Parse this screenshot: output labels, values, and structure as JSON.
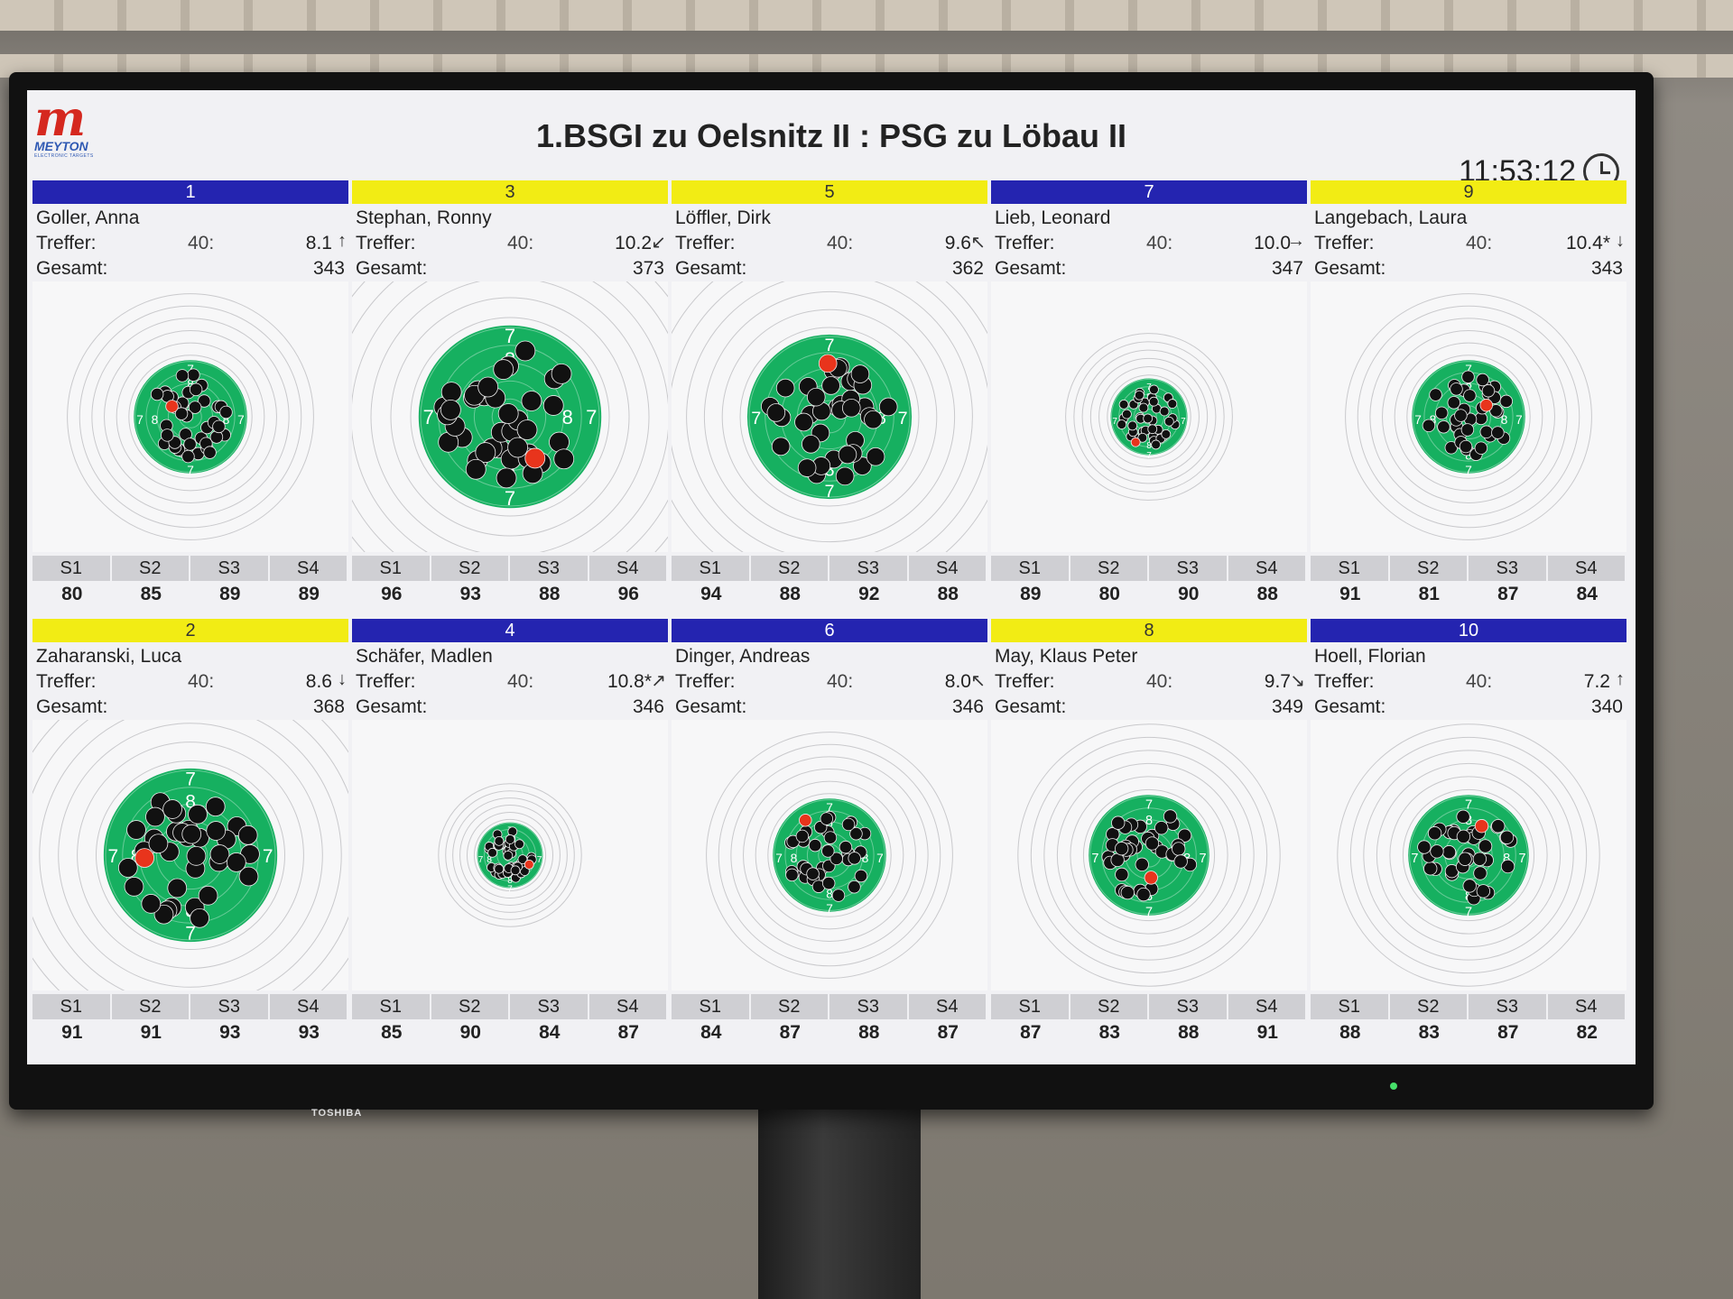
{
  "header": {
    "logo_mark": "m",
    "logo_text": "MEYTON",
    "logo_subtext": "ELECTRONIC TARGETS",
    "title": "1.BSGI zu Oelsnitz II : PSG zu Löbau II",
    "clock": "11:53:12"
  },
  "labels": {
    "treffer": "Treffer:",
    "gesamt": "Gesamt:",
    "score_label": "40:"
  },
  "series_labels": [
    "S1",
    "S2",
    "S3",
    "S4"
  ],
  "colors": {
    "target_green": "#16b060",
    "lane_blue": "#2424b0",
    "lane_yellow": "#f2ec14",
    "last_shot": "#e8341c",
    "marker_yellow": "#e8e81a",
    "marker_blue": "#2a3fd0"
  },
  "shooters": [
    {
      "lane": "1",
      "color": "blue",
      "name": "Goller, Anna",
      "last": "8.1",
      "arrow": "↑",
      "total": "343",
      "series": [
        "80",
        "85",
        "89",
        "89"
      ],
      "zoom": 0.62,
      "center": "8"
    },
    {
      "lane": "3",
      "color": "yellow",
      "name": "Stephan, Ronny",
      "last": "10.2",
      "arrow": "↙",
      "total": "373",
      "series": [
        "96",
        "93",
        "88",
        "96"
      ],
      "zoom": 1.0,
      "center": "8"
    },
    {
      "lane": "5",
      "color": "yellow",
      "name": "Löffler, Dirk",
      "last": "9.6",
      "arrow": "↖",
      "total": "362",
      "series": [
        "94",
        "88",
        "92",
        "88"
      ],
      "zoom": 0.9,
      "center": "8"
    },
    {
      "lane": "7",
      "color": "blue",
      "name": "Lieb, Leonard",
      "last": "10.0",
      "arrow": "→",
      "total": "347",
      "series": [
        "89",
        "80",
        "90",
        "88"
      ],
      "zoom": 0.42,
      "center": "8"
    },
    {
      "lane": "9",
      "color": "yellow",
      "name": "Langebach, Laura",
      "last": "10.4*",
      "arrow": "↓",
      "total": "343",
      "series": [
        "91",
        "81",
        "87",
        "84"
      ],
      "zoom": 0.62,
      "center": "8"
    },
    {
      "lane": "2",
      "color": "yellow",
      "name": "Zaharanski, Luca",
      "last": "8.6",
      "arrow": "↓",
      "total": "368",
      "series": [
        "91",
        "91",
        "93",
        "93"
      ],
      "zoom": 0.95,
      "center": "8"
    },
    {
      "lane": "4",
      "color": "blue",
      "name": "Schäfer, Madlen",
      "last": "10.8*",
      "arrow": "↗",
      "total": "346",
      "series": [
        "85",
        "90",
        "84",
        "87"
      ],
      "zoom": 0.36,
      "center": "8"
    },
    {
      "lane": "6",
      "color": "blue",
      "name": "Dinger, Andreas",
      "last": "8.0",
      "arrow": "↖",
      "total": "346",
      "series": [
        "84",
        "87",
        "88",
        "87"
      ],
      "zoom": 0.62,
      "center": "8"
    },
    {
      "lane": "8",
      "color": "yellow",
      "name": "May, Klaus Peter",
      "last": "9.7",
      "arrow": "↘",
      "total": "349",
      "series": [
        "87",
        "83",
        "88",
        "91"
      ],
      "zoom": 0.66,
      "center": "8"
    },
    {
      "lane": "10",
      "color": "blue",
      "name": "Hoell, Florian",
      "last": "7.2",
      "arrow": "↑",
      "total": "340",
      "series": [
        "88",
        "83",
        "87",
        "82"
      ],
      "zoom": 0.66,
      "center": "8"
    }
  ]
}
